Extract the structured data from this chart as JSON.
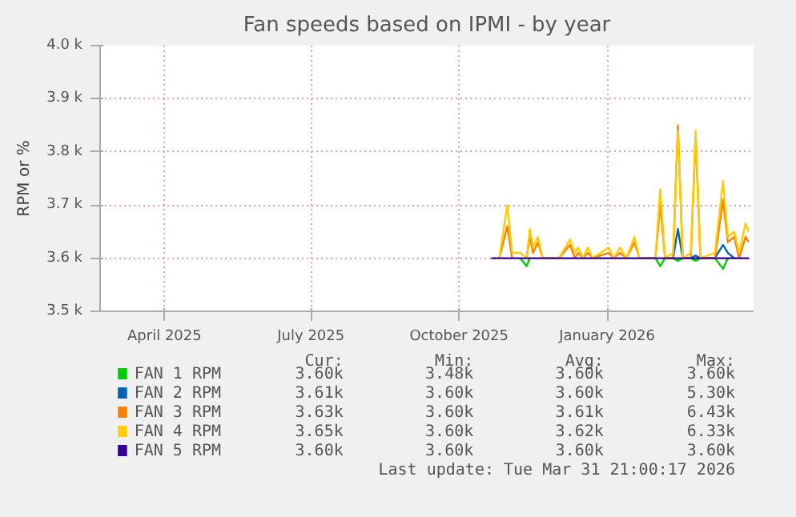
{
  "chart_data": {
    "type": "line",
    "title": "Fan speeds based on IPMI - by year",
    "ylabel": "RPM or %",
    "grid": true,
    "legend": "bottom",
    "line_style": "solid",
    "xlim": [
      "2025-02-20",
      "2026-04-02"
    ],
    "xticks": [
      {
        "value": "2025-04-01",
        "label": "April 2025"
      },
      {
        "value": "2025-07-01",
        "label": "July 2025"
      },
      {
        "value": "2025-10-01",
        "label": "October 2025"
      },
      {
        "value": "2026-01-01",
        "label": "January 2026"
      }
    ],
    "ylim": [
      3.5,
      4.0
    ],
    "yticks": [
      {
        "value": 3.5,
        "label": "3.5 k"
      },
      {
        "value": 3.6,
        "label": "3.6 k"
      },
      {
        "value": 3.7,
        "label": "3.7 k"
      },
      {
        "value": 3.8,
        "label": "3.8 k"
      },
      {
        "value": 3.9,
        "label": "3.9 k"
      },
      {
        "value": 4.0,
        "label": "4.0 k"
      }
    ],
    "x": [
      "2025-10-21",
      "2025-10-26",
      "2025-10-31",
      "2025-11-03",
      "2025-11-08",
      "2025-11-12",
      "2025-11-14",
      "2025-11-16",
      "2025-11-19",
      "2025-11-22",
      "2025-12-02",
      "2025-12-09",
      "2025-12-12",
      "2025-12-14",
      "2025-12-17",
      "2025-12-20",
      "2025-12-23",
      "2026-01-02",
      "2026-01-05",
      "2026-01-09",
      "2026-01-13",
      "2026-01-18",
      "2026-01-21",
      "2026-01-31",
      "2026-02-03",
      "2026-02-06",
      "2026-02-11",
      "2026-02-14",
      "2026-02-17",
      "2026-02-22",
      "2026-02-25",
      "2026-02-28",
      "2026-03-09",
      "2026-03-14",
      "2026-03-17",
      "2026-03-21",
      "2026-03-24",
      "2026-03-28",
      "2026-03-30"
    ],
    "series": [
      {
        "name": "FAN 1 RPM",
        "color": "#00cc00",
        "values": [
          null,
          null,
          null,
          null,
          3.6,
          3.585,
          3.6,
          null,
          null,
          null,
          null,
          null,
          null,
          null,
          null,
          null,
          null,
          null,
          null,
          null,
          null,
          null,
          null,
          3.6,
          3.585,
          3.6,
          3.6,
          3.595,
          3.6,
          3.6,
          3.595,
          3.6,
          3.6,
          3.58,
          3.6,
          null,
          null,
          null,
          null
        ]
      },
      {
        "name": "FAN 2 RPM",
        "color": "#0066b3",
        "values": [
          null,
          null,
          null,
          null,
          null,
          null,
          null,
          null,
          null,
          null,
          null,
          null,
          null,
          null,
          null,
          null,
          null,
          null,
          null,
          null,
          null,
          null,
          null,
          null,
          null,
          null,
          3.6,
          3.655,
          3.6,
          3.6,
          3.605,
          3.6,
          3.6,
          3.625,
          3.61,
          3.6,
          null,
          null,
          null
        ]
      },
      {
        "name": "FAN 3 RPM",
        "color": "#ff8000",
        "values": [
          null,
          3.6,
          3.66,
          3.6,
          null,
          3.6,
          3.64,
          3.61,
          3.63,
          3.6,
          3.6,
          3.625,
          3.6,
          3.61,
          3.6,
          3.61,
          3.6,
          3.61,
          3.6,
          3.61,
          3.6,
          3.63,
          3.6,
          3.6,
          3.7,
          3.6,
          3.6,
          3.85,
          3.6,
          3.6,
          3.83,
          3.6,
          3.6,
          3.71,
          3.63,
          3.64,
          3.6,
          3.64,
          3.63
        ]
      },
      {
        "name": "FAN 4 RPM",
        "color": "#ffcc00",
        "values": [
          null,
          3.6,
          3.7,
          3.61,
          3.61,
          3.6,
          3.655,
          3.62,
          3.64,
          3.6,
          3.6,
          3.635,
          3.61,
          3.62,
          3.6,
          3.62,
          3.6,
          3.62,
          3.6,
          3.62,
          3.6,
          3.64,
          3.6,
          3.6,
          3.73,
          3.6,
          3.61,
          3.84,
          3.6,
          3.61,
          3.84,
          3.6,
          3.61,
          3.745,
          3.64,
          3.65,
          3.61,
          3.665,
          3.65
        ]
      },
      {
        "name": "FAN 5 RPM",
        "color": "#330099",
        "values": [
          3.6,
          3.6,
          3.6,
          3.6,
          3.6,
          3.6,
          3.6,
          3.6,
          3.6,
          3.6,
          3.6,
          3.6,
          3.6,
          3.6,
          3.6,
          3.6,
          3.6,
          3.6,
          3.6,
          3.6,
          3.6,
          3.6,
          3.6,
          3.6,
          3.6,
          3.6,
          3.6,
          3.6,
          3.6,
          3.6,
          3.6,
          3.6,
          3.6,
          3.6,
          3.6,
          3.6,
          3.6,
          3.6,
          3.6
        ]
      }
    ],
    "annotations": [
      "Cur:",
      "Min:",
      "Avg:",
      "Max:",
      "3.60k",
      "3.48k",
      "3.60k",
      "3.60k",
      "3.61k",
      "3.60k",
      "3.60k",
      "5.30k",
      "3.63k",
      "3.60k",
      "3.61k",
      "6.43k",
      "3.65k",
      "3.60k",
      "3.62k",
      "6.33k",
      "3.60k",
      "3.60k",
      "3.60k",
      "3.60k",
      "Last update: Tue Mar 31 21:00:17 2026"
    ]
  }
}
